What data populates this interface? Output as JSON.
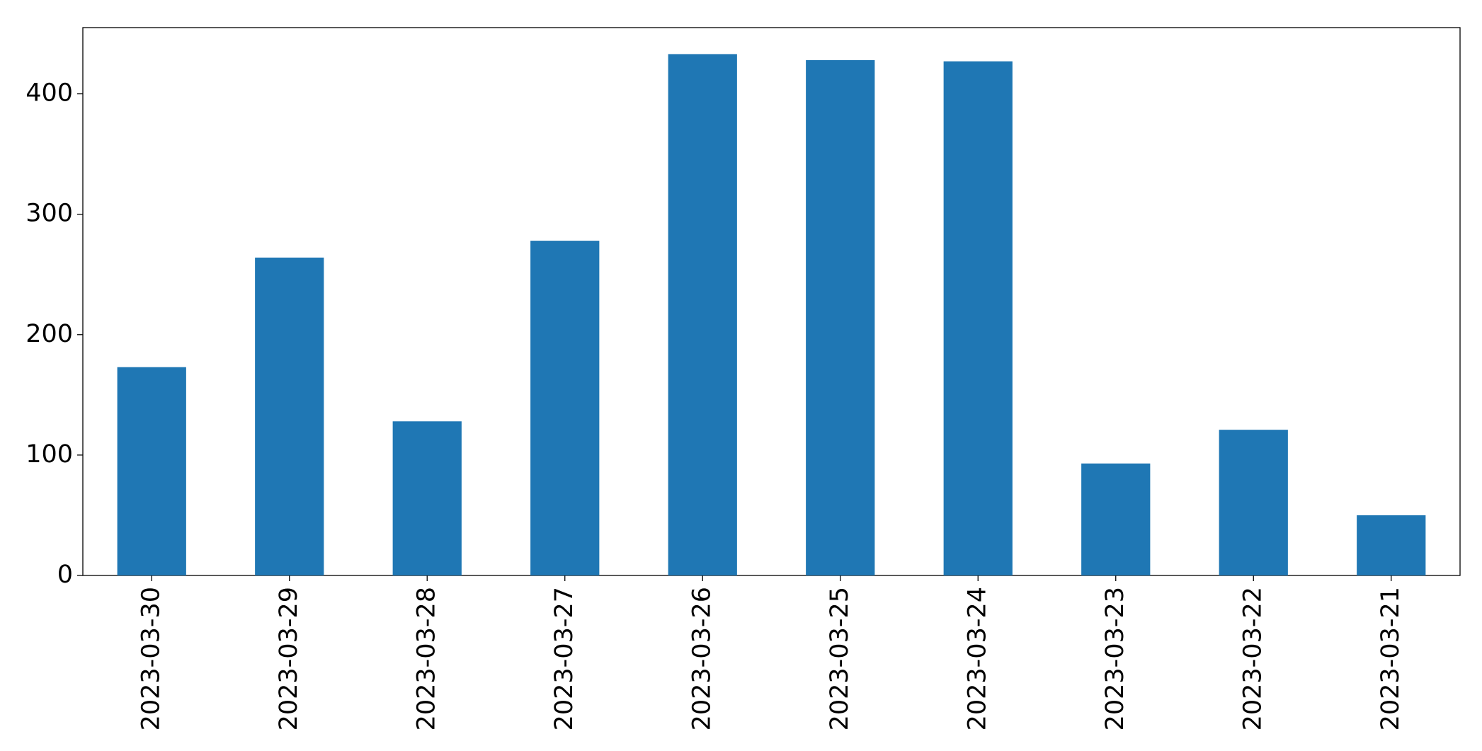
{
  "chart_data": {
    "type": "bar",
    "categories": [
      "2023-03-30",
      "2023-03-29",
      "2023-03-28",
      "2023-03-27",
      "2023-03-26",
      "2023-03-25",
      "2023-03-24",
      "2023-03-23",
      "2023-03-22",
      "2023-03-21"
    ],
    "values": [
      173,
      264,
      128,
      278,
      433,
      428,
      427,
      93,
      121,
      50
    ],
    "color": "#1f77b4",
    "ylim": [
      0,
      455
    ],
    "yticks": [
      0,
      100,
      200,
      300,
      400
    ],
    "grid": false
  }
}
